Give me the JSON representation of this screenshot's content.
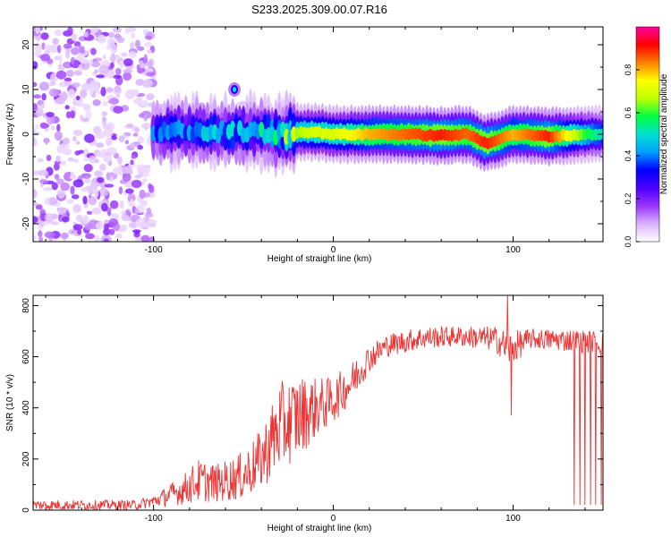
{
  "figure": {
    "title": "S233.2025.309.00.07.R16"
  },
  "colors": {
    "rainbow": [
      "#ffffff",
      "#d9b3ff",
      "#9933ff",
      "#4d00ff",
      "#0000ff",
      "#00a0ff",
      "#00e0d0",
      "#00ff40",
      "#c0ff00",
      "#ffff00",
      "#ff8000",
      "#ff0000",
      "#ff00a0"
    ],
    "snr_line": "#ee3333"
  },
  "chart_data": [
    {
      "type": "heatmap",
      "xlabel": "Height of straight line (km)",
      "ylabel": "Frequency (Hz)",
      "xlim": [
        -167,
        150
      ],
      "ylim": [
        -24,
        24
      ],
      "x_ticks": [
        -100,
        0,
        100
      ],
      "x_tick_labels": [
        "-100",
        "0",
        "100"
      ],
      "y_ticks": [
        -20,
        -10,
        0,
        10,
        20
      ],
      "y_tick_labels": [
        "-20",
        "-10",
        "0",
        "10",
        "20"
      ],
      "description_of_data": "Noise below -100 km; from -100 to 150 km a band near 0 Hz with high amplitude ~0.9",
      "ridge": [
        {
          "x": -100,
          "freq": 0,
          "amp": 0.35
        },
        {
          "x": -80,
          "freq": 1,
          "amp": 0.4
        },
        {
          "x": -60,
          "freq": 0.5,
          "amp": 0.4
        },
        {
          "x": -40,
          "freq": 0.5,
          "amp": 0.45
        },
        {
          "x": -30,
          "freq": 0,
          "amp": 0.5
        },
        {
          "x": -20,
          "freq": 0.5,
          "amp": 0.65
        },
        {
          "x": -10,
          "freq": 0.5,
          "amp": 0.7
        },
        {
          "x": 0,
          "freq": 0,
          "amp": 0.7
        },
        {
          "x": 20,
          "freq": 0,
          "amp": 0.8
        },
        {
          "x": 40,
          "freq": 0,
          "amp": 0.85
        },
        {
          "x": 60,
          "freq": -0.3,
          "amp": 0.9
        },
        {
          "x": 75,
          "freq": 0,
          "amp": 0.85
        },
        {
          "x": 85,
          "freq": -2,
          "amp": 0.9
        },
        {
          "x": 100,
          "freq": 0,
          "amp": 0.8
        },
        {
          "x": 120,
          "freq": -0.5,
          "amp": 0.9
        },
        {
          "x": 140,
          "freq": 0,
          "amp": 0.6
        },
        {
          "x": 150,
          "freq": 0,
          "amp": 0.5
        }
      ]
    },
    {
      "type": "colorbar",
      "label": "Normalized spectral amplitude",
      "lim": [
        0,
        1
      ],
      "ticks": [
        0.0,
        0.2,
        0.4,
        0.6,
        0.8
      ],
      "tick_labels": [
        "0.0",
        "0.2",
        "0.4",
        "0.6",
        "0.8"
      ]
    },
    {
      "type": "line",
      "xlabel": "Height of straight line (km)",
      "ylabel": "SNR (10 * v/v)",
      "xlim": [
        -167,
        150
      ],
      "ylim": [
        0,
        840
      ],
      "x_ticks": [
        -100,
        0,
        100
      ],
      "x_tick_labels": [
        "-100",
        "0",
        "100"
      ],
      "y_ticks": [
        0,
        200,
        400,
        600,
        800
      ],
      "y_tick_labels": [
        "0",
        "200",
        "400",
        "600",
        "800"
      ],
      "series": [
        {
          "name": "SNR",
          "envelope": [
            {
              "x": -167,
              "low": 0,
              "high": 40
            },
            {
              "x": -110,
              "low": 0,
              "high": 40
            },
            {
              "x": -100,
              "low": 10,
              "high": 60
            },
            {
              "x": -85,
              "low": 20,
              "high": 130
            },
            {
              "x": -75,
              "low": 30,
              "high": 200
            },
            {
              "x": -65,
              "low": 30,
              "high": 180
            },
            {
              "x": -50,
              "low": 40,
              "high": 230
            },
            {
              "x": -40,
              "low": 80,
              "high": 320
            },
            {
              "x": -30,
              "low": 150,
              "high": 500
            },
            {
              "x": -20,
              "low": 200,
              "high": 530
            },
            {
              "x": -10,
              "low": 280,
              "high": 520
            },
            {
              "x": 0,
              "low": 340,
              "high": 520
            },
            {
              "x": 10,
              "low": 420,
              "high": 580
            },
            {
              "x": 20,
              "low": 540,
              "high": 650
            },
            {
              "x": 30,
              "low": 600,
              "high": 690
            },
            {
              "x": 50,
              "low": 630,
              "high": 720
            },
            {
              "x": 70,
              "low": 640,
              "high": 720
            },
            {
              "x": 90,
              "low": 620,
              "high": 720
            },
            {
              "x": 98,
              "low": 560,
              "high": 700
            },
            {
              "x": 110,
              "low": 630,
              "high": 710
            },
            {
              "x": 130,
              "low": 620,
              "high": 710
            },
            {
              "x": 150,
              "low": 610,
              "high": 700
            }
          ],
          "spikes": [
            {
              "x": 97,
              "value": 840
            },
            {
              "x": 99,
              "value": 370
            },
            {
              "x": 134,
              "value": 20
            },
            {
              "x": 137,
              "value": 20
            },
            {
              "x": 140,
              "value": 20
            },
            {
              "x": 143,
              "value": 20
            },
            {
              "x": 146,
              "value": 20
            },
            {
              "x": 149,
              "value": 20
            }
          ]
        }
      ]
    }
  ]
}
